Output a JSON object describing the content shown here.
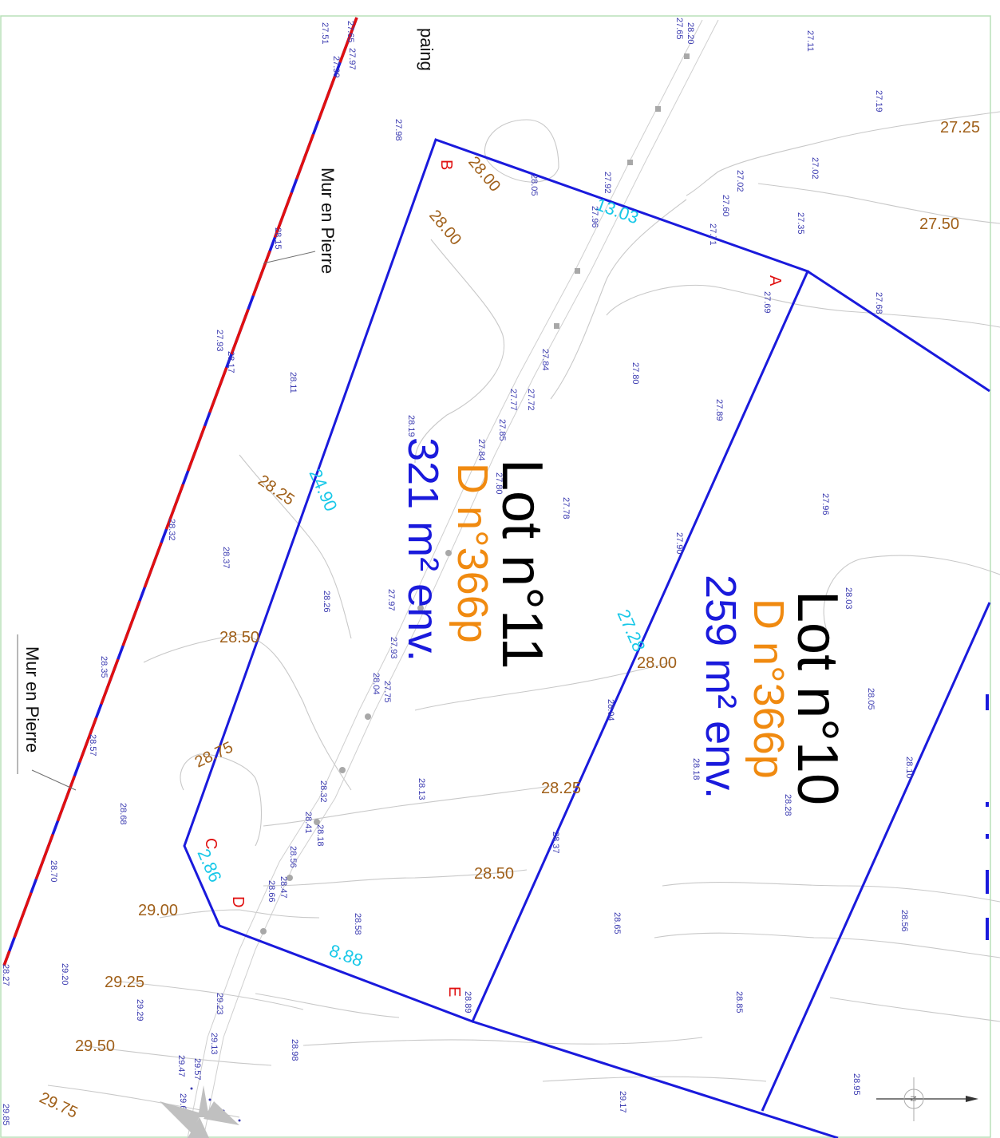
{
  "colors": {
    "boundary": "#1a1adc",
    "wall_red": "#e01010",
    "contour": "#c8c8c8",
    "contour_label": "#a0601a",
    "point": "#3a3ab0",
    "dimension": "#18c8e8",
    "vertex": "#e01010",
    "section": "#f08a10",
    "area": "#1a1adc",
    "frame": "#b8e0b8"
  },
  "title_fragment": "paing",
  "walls": [
    {
      "id": "wall-upper",
      "label": "Mur en Pierre"
    },
    {
      "id": "wall-lower",
      "label": "Mur en Pierre"
    }
  ],
  "lots": [
    {
      "id": "lot-11",
      "title": "Lot n°11",
      "section": "D n°366p",
      "area": "321 m² env."
    },
    {
      "id": "lot-10",
      "title": "Lot n°10",
      "section": "D n°366p",
      "area": "259 m² env."
    }
  ],
  "vertices": [
    "A",
    "B",
    "C",
    "D",
    "E"
  ],
  "dimensions": [
    "13.03",
    "24.90",
    "27.28",
    "2.86",
    "8.88"
  ],
  "contour_labels": [
    "27.25",
    "27.50",
    "28.00",
    "28.00",
    "28.25",
    "28.50",
    "28.75",
    "29.00",
    "29.25",
    "29.50",
    "29.75",
    "28.00",
    "28.25",
    "28.50"
  ],
  "spot_heights": [
    "27.11",
    "27.19",
    "27.02",
    "27.02",
    "27.60",
    "27.35",
    "27.71",
    "27.69",
    "27.68",
    "27.92",
    "27.96",
    "28.05",
    "27.98",
    "27.97",
    "27.99",
    "28.15",
    "27.93",
    "28.17",
    "28.11",
    "28.32",
    "28.37",
    "28.26",
    "28.35",
    "28.57",
    "28.68",
    "28.70",
    "28.27",
    "29.20",
    "29.29",
    "29.23",
    "29.13",
    "29.47",
    "29.57",
    "29.60",
    "28.98",
    "28.58",
    "28.66",
    "28.47",
    "28.56",
    "28.41",
    "28.18",
    "28.32",
    "28.13",
    "28.04",
    "27.75",
    "27.93",
    "27.97",
    "27.78",
    "27.80",
    "27.89",
    "27.96",
    "27.90",
    "28.03",
    "28.05",
    "28.10",
    "28.28",
    "28.18",
    "28.04",
    "28.37",
    "28.65",
    "28.56",
    "28.85",
    "28.95",
    "29.17",
    "28.89",
    "27.84",
    "27.72",
    "27.77",
    "27.85",
    "27.84",
    "27.80",
    "28.19",
    "27.51",
    "27.65",
    "28.20",
    "27.65",
    "29.85"
  ],
  "north_arrow_letter": "N"
}
